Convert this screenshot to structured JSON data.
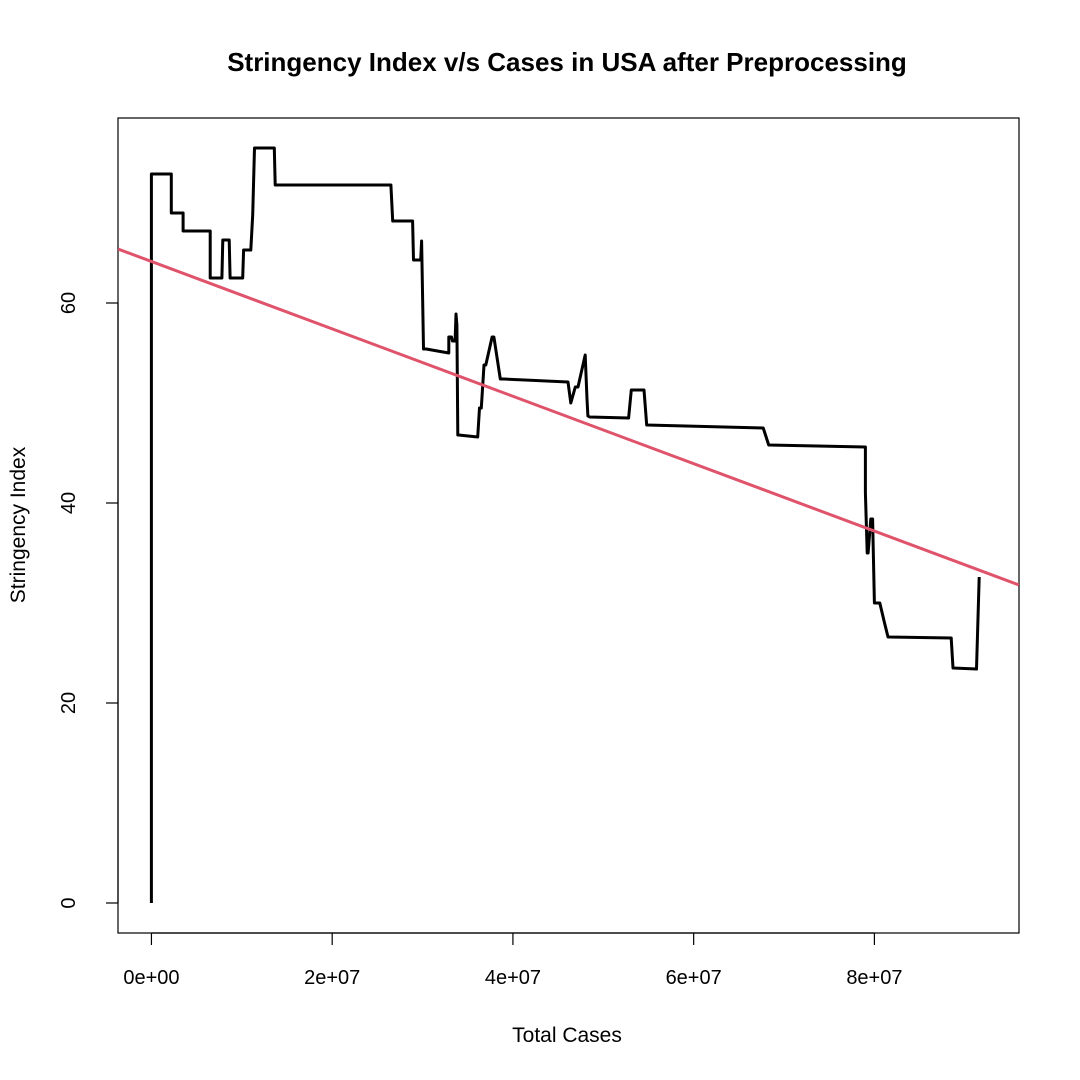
{
  "chart_data": {
    "type": "line",
    "title": "Stringency Index v/s Cases in USA after Preprocessing",
    "xlabel": "Total Cases",
    "ylabel": "Stringency Index",
    "xlim": [
      -3700000,
      96000000
    ],
    "ylim": [
      -3,
      78.5
    ],
    "x_ticks": [
      0,
      20000000,
      40000000,
      60000000,
      80000000
    ],
    "x_tick_labels": [
      "0e+00",
      "2e+07",
      "4e+07",
      "6e+07",
      "8e+07"
    ],
    "y_ticks": [
      0,
      20,
      40,
      60
    ],
    "y_tick_labels": [
      "0",
      "20",
      "40",
      "60"
    ],
    "grid": false,
    "legend": "none",
    "series": [
      {
        "color": "#000000",
        "x": [
          0,
          0,
          2200000,
          2200000,
          3500000,
          3500000,
          6500000,
          6500000,
          7800000,
          7900000,
          8600000,
          8700000,
          10100000,
          10200000,
          11000000,
          11200000,
          11400000,
          13600000,
          13700000,
          26500000,
          26700000,
          28900000,
          29000000,
          29800000,
          29900000,
          30000000,
          30100000,
          30400000,
          32900000,
          32900000,
          33200000,
          33300000,
          33600000,
          33700000,
          33800000,
          33900000,
          34000000,
          36100000,
          36300000,
          36500000,
          36800000,
          37000000,
          37700000,
          37900000,
          38600000,
          39000000,
          46100000,
          46400000,
          46900000,
          47200000,
          48000000,
          48200000,
          48300000,
          48500000,
          52800000,
          53100000,
          54500000,
          54800000,
          67700000,
          68300000,
          79000000,
          79000000,
          79200000,
          79300000,
          79600000,
          79800000,
          80000000,
          80600000,
          81100000,
          81500000,
          88500000,
          88700000,
          91300000,
          91600000
        ],
        "y": [
          0,
          72.9,
          72.9,
          69,
          69,
          67.2,
          67.2,
          62.5,
          62.5,
          66.3,
          66.3,
          62.5,
          62.5,
          65.3,
          65.3,
          68.8,
          75.5,
          75.5,
          71.8,
          71.8,
          68.2,
          68.2,
          64.3,
          64.3,
          66.2,
          60.6,
          55.4,
          55.4,
          55.0,
          56.6,
          56.6,
          56.2,
          56.2,
          58.9,
          57.8,
          46.8,
          46.8,
          46.6,
          49.5,
          49.5,
          53.8,
          53.8,
          56.6,
          56.6,
          52.4,
          52.4,
          52.1,
          50.0,
          51.6,
          51.6,
          54.8,
          50.4,
          48.7,
          48.6,
          48.5,
          51.3,
          51.3,
          47.8,
          47.5,
          45.8,
          45.6,
          41.0,
          35.0,
          35.0,
          38.4,
          38.4,
          30.0,
          30.0,
          28.1,
          26.6,
          26.5,
          23.5,
          23.4,
          32.6
        ]
      },
      {
        "color": "#DF536B",
        "x": [
          -3700000,
          96000000
        ],
        "y": [
          65.4,
          31.8
        ]
      }
    ]
  }
}
